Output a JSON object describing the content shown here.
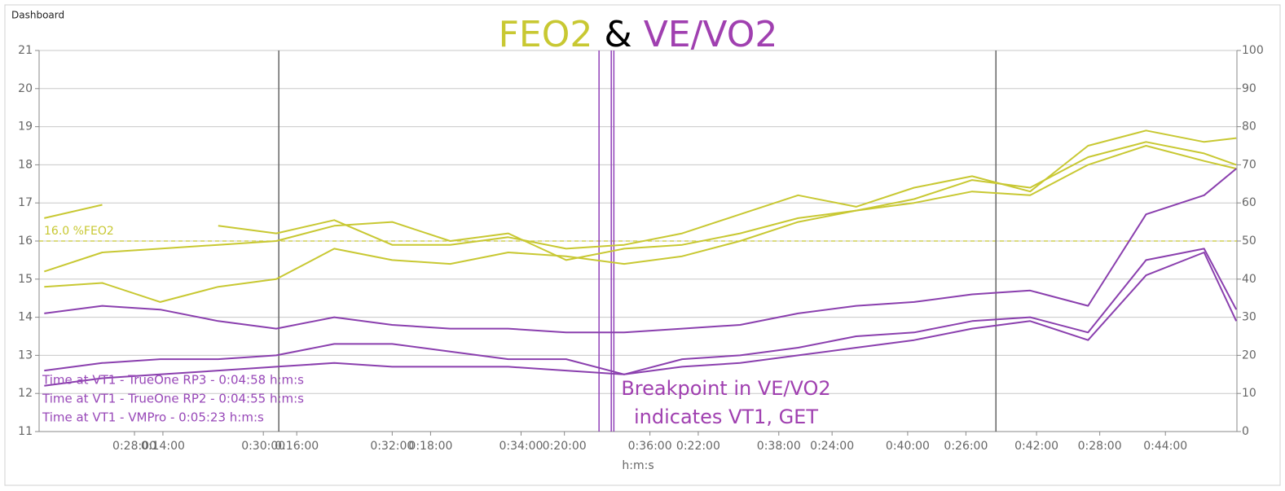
{
  "header": "Dashboard",
  "chart_data": {
    "type": "line",
    "title_parts": [
      {
        "text": "FEO2",
        "color": "#c8c832"
      },
      {
        "text": "&",
        "color": "#000000"
      },
      {
        "text": "VE/VO2",
        "color": "#a040b0"
      }
    ],
    "x_label": "h:m:s",
    "x": [
      26.6,
      27.5,
      28.4,
      29.3,
      30.2,
      31.1,
      32.0,
      32.9,
      33.8,
      34.7,
      35.6,
      36.5,
      37.4,
      38.3,
      39.2,
      40.1,
      41.0,
      41.9,
      42.8,
      43.7,
      44.6,
      45.1
    ],
    "xlim": [
      26.52,
      45.11
    ],
    "xticks": [
      {
        "value": 28,
        "label": "0:28:00"
      },
      {
        "value": 30,
        "label": "0:30:00"
      },
      {
        "value": 32,
        "label": "0:32:00"
      },
      {
        "value": 34,
        "label": "0:34:00"
      },
      {
        "value": 36,
        "label": "0:36:00"
      },
      {
        "value": 38,
        "label": "0:38:00"
      },
      {
        "value": 40,
        "label": "0:40:00"
      },
      {
        "value": 42,
        "label": "0:42:00"
      },
      {
        "value": 44,
        "label": "0:44:00"
      }
    ],
    "x2lim": [
      12.15,
      30.05
    ],
    "x2ticks": [
      {
        "value": 14,
        "label": "0:14:00"
      },
      {
        "value": 16,
        "label": "0:16:00"
      },
      {
        "value": 18,
        "label": "0:18:00"
      },
      {
        "value": 20,
        "label": "0:20:00"
      },
      {
        "value": 22,
        "label": "0:22:00"
      },
      {
        "value": 24,
        "label": "0:24:00"
      },
      {
        "value": 26,
        "label": "0:26:00"
      },
      {
        "value": 28,
        "label": "0:28:00"
      }
    ],
    "ylim": [
      11,
      21
    ],
    "yticks": [
      11,
      12,
      13,
      14,
      15,
      16,
      17,
      18,
      19,
      20,
      21
    ],
    "y2lim": [
      0,
      100
    ],
    "y2ticks": [
      0,
      10,
      20,
      30,
      40,
      50,
      60,
      70,
      80,
      90,
      100
    ],
    "grid": true,
    "series": [
      {
        "color": "#c8c832",
        "values": [
          16.6,
          16.95,
          null,
          16.4,
          16.2,
          16.55,
          15.9,
          15.9,
          16.1,
          15.8,
          15.9,
          16.2,
          16.7,
          17.2,
          16.9,
          17.4,
          17.7,
          17.3,
          18.5,
          18.9,
          18.6,
          18.7
        ]
      },
      {
        "color": "#c8c832",
        "values": [
          15.2,
          15.7,
          15.8,
          15.9,
          16.0,
          16.4,
          16.5,
          16.0,
          16.2,
          15.5,
          15.8,
          15.9,
          16.2,
          16.6,
          16.8,
          17.1,
          17.6,
          17.4,
          18.2,
          18.6,
          18.3,
          18.0
        ]
      },
      {
        "color": "#c8c832",
        "values": [
          14.8,
          14.9,
          14.4,
          14.8,
          15.0,
          15.8,
          15.5,
          15.4,
          15.7,
          15.6,
          15.4,
          15.6,
          16.0,
          16.5,
          16.8,
          17.0,
          17.3,
          17.2,
          18.0,
          18.5,
          18.1,
          17.9
        ]
      },
      {
        "color": "#8a3fae",
        "axis": "y2",
        "values": [
          31,
          33,
          32,
          29,
          27,
          30,
          28,
          27,
          27,
          26,
          26,
          27,
          28,
          31,
          33,
          34,
          36,
          37,
          33,
          57,
          62,
          69
        ]
      },
      {
        "color": "#8a3fae",
        "axis": "y2",
        "values": [
          16,
          18,
          19,
          19,
          20,
          23,
          23,
          21,
          19,
          19,
          15,
          19,
          20,
          22,
          25,
          26,
          29,
          30,
          26,
          45,
          48,
          32
        ]
      },
      {
        "color": "#8a3fae",
        "axis": "y2",
        "values": [
          12,
          14,
          15,
          16,
          17,
          18,
          17,
          17,
          17,
          16,
          15,
          17,
          18,
          20,
          22,
          24,
          27,
          29,
          24,
          41,
          47,
          29
        ]
      }
    ],
    "ref_line": {
      "value": 16,
      "label": "16.0 %FEO2",
      "color": "#c8c832"
    },
    "vlines": [
      {
        "x": 30.24,
        "color": "#666666"
      },
      {
        "x": 41.37,
        "color": "#666666"
      },
      {
        "x": 35.21,
        "color": "#9040b8"
      },
      {
        "x": 35.4,
        "color": "#9040b8"
      },
      {
        "x": 35.44,
        "color": "#9040b8"
      }
    ],
    "notes": [
      "Time at VT1 - TrueOne RP3 - 0:04:58 h:m:s",
      "Time at VT1 - TrueOne RP2 - 0:04:55 h:m:s",
      "Time at VT1 - VMPro - 0:05:23 h:m:s"
    ],
    "annotation": [
      "Breakpoint in VE/VO2",
      "indicates VT1, GET"
    ]
  }
}
